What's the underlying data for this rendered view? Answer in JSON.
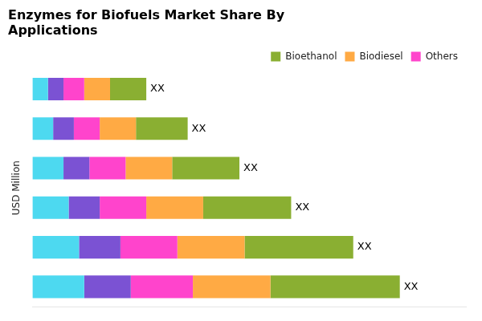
{
  "chart_data": {
    "type": "bar",
    "orientation": "horizontal",
    "stacked": true,
    "title": "Enzymes for Biofuels Market Share By\nApplications",
    "ylabel": "USD Million",
    "categories": [
      null,
      null,
      null,
      null,
      null,
      null
    ],
    "series": [
      {
        "color": "#4DD9F0",
        "values": [
          1.0,
          0.9,
          0.7,
          0.6,
          0.4,
          0.3
        ]
      },
      {
        "color": "#7B52D3",
        "values": [
          0.9,
          0.8,
          0.6,
          0.5,
          0.4,
          0.3
        ]
      },
      {
        "name": "Others",
        "color": "#FF44CC",
        "values": [
          1.2,
          1.1,
          0.9,
          0.7,
          0.5,
          0.4
        ]
      },
      {
        "name": "Biodiesel",
        "color": "#FFAA44",
        "values": [
          1.5,
          1.3,
          1.1,
          0.9,
          0.7,
          0.5
        ]
      },
      {
        "name": "Bioethanol",
        "color": "#8AAF32",
        "values": [
          2.5,
          2.1,
          1.7,
          1.3,
          1.0,
          0.7
        ]
      }
    ],
    "annotations": [
      "XX",
      "XX",
      "XX",
      "XX",
      "XX",
      "XX"
    ],
    "xlim": [
      0,
      8.378
    ],
    "xticks": [],
    "grid": false,
    "tick_labels": false,
    "legend": "upper right"
  }
}
